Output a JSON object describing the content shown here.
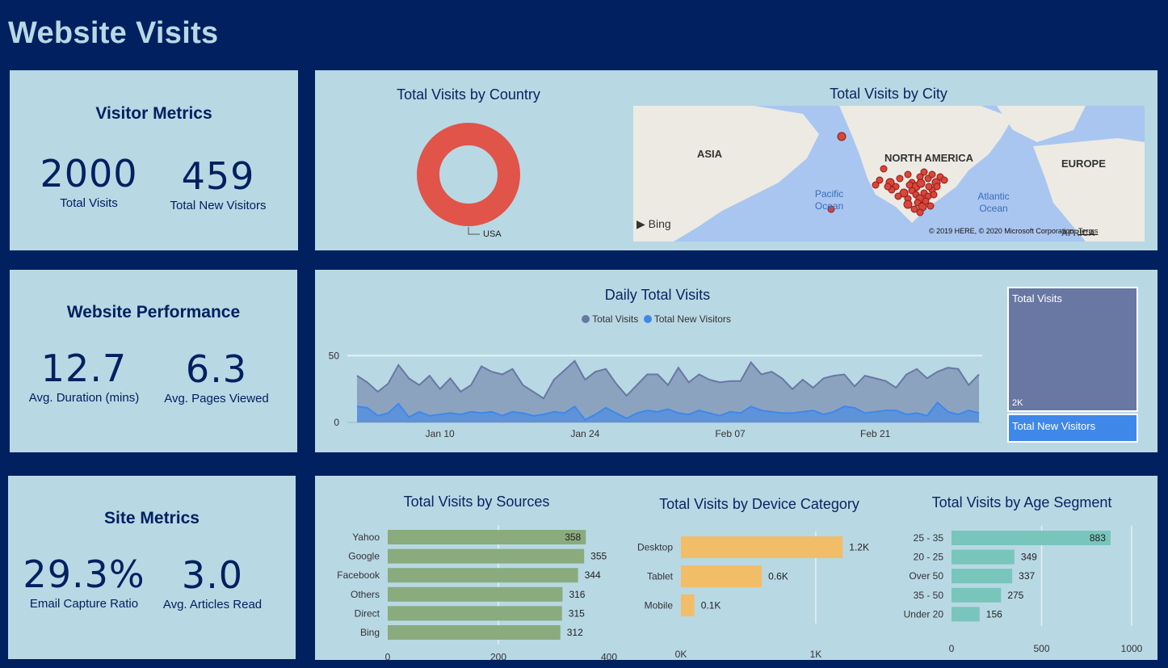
{
  "page": {
    "title": "Website Visits"
  },
  "visitor_metrics": {
    "title": "Visitor Metrics",
    "total_visits": "2000",
    "total_visits_label": "Total Visits",
    "new_visitors": "459",
    "new_visitors_label": "Total New Visitors"
  },
  "website_performance": {
    "title": "Website Performance",
    "avg_duration": "12.7",
    "avg_duration_label": "Avg. Duration (mins)",
    "avg_pages": "6.3",
    "avg_pages_label": "Avg. Pages Viewed"
  },
  "site_metrics": {
    "title": "Site Metrics",
    "email_capture": "29.3%",
    "email_capture_label": "Email Capture Ratio",
    "avg_articles": "3.0",
    "avg_articles_label": "Avg. Articles Read"
  },
  "map": {
    "title": "Total Visits by City",
    "labels": {
      "asia": "ASIA",
      "north_america": "NORTH AMERICA",
      "europe": "EUROPE",
      "pacific": "Pacific Ocean",
      "atlantic": "Atlantic Ocean",
      "africa": "AFRICA"
    },
    "bing": "Bing",
    "copyright": "© 2019 HERE, © 2020 Microsoft Corporation",
    "terms": "Terms"
  },
  "treemap": {
    "total_visits_label": "Total Visits",
    "total_visits_value": "2K",
    "new_visitors_label": "Total New Visitors"
  },
  "colors": {
    "background": "#002060",
    "card": "#b8d8e4",
    "donut": "#e0544a",
    "visits_area": "#6878a2",
    "new_area": "#3f88e9",
    "sources_bar": "#8aab7d",
    "device_bar": "#f2bd69",
    "age_bar": "#78c5bc"
  },
  "chart_data": [
    {
      "type": "pie",
      "variant": "donut",
      "title": "Total Visits by Country",
      "categories": [
        "USA"
      ],
      "values": [
        2000
      ]
    },
    {
      "type": "area",
      "title": "Daily Total Visits",
      "legend": [
        "Total Visits",
        "Total New Visitors"
      ],
      "x_ticks": [
        "Jan 10",
        "Jan 24",
        "Feb 07",
        "Feb 21"
      ],
      "x_tick_index": [
        8,
        22,
        36,
        50
      ],
      "y_ticks": [
        0,
        50
      ],
      "ylim": [
        0,
        52
      ],
      "series": [
        {
          "name": "Total Visits",
          "values": [
            35,
            30,
            23,
            29,
            43,
            33,
            28,
            35,
            25,
            33,
            23,
            28,
            42,
            38,
            36,
            40,
            28,
            23,
            18,
            32,
            39,
            46,
            32,
            38,
            40,
            29,
            20,
            28,
            36,
            36,
            28,
            41,
            30,
            36,
            32,
            30,
            31,
            31,
            45,
            36,
            38,
            33,
            25,
            32,
            26,
            33,
            35,
            36,
            27,
            35,
            33,
            31,
            26,
            36,
            40,
            33,
            38,
            41,
            40,
            28,
            36
          ]
        },
        {
          "name": "Total New Visitors",
          "values": [
            12,
            11,
            5,
            7,
            14,
            4,
            8,
            5,
            6,
            7,
            6,
            8,
            7,
            8,
            5,
            8,
            7,
            5,
            6,
            8,
            7,
            12,
            2,
            6,
            11,
            7,
            3,
            7,
            9,
            8,
            10,
            7,
            6,
            9,
            7,
            5,
            8,
            7,
            12,
            9,
            8,
            7,
            7,
            8,
            9,
            6,
            8,
            12,
            11,
            7,
            8,
            9,
            9,
            6,
            7,
            5,
            15,
            8,
            6,
            9,
            7
          ]
        }
      ]
    },
    {
      "type": "bar",
      "orientation": "horizontal",
      "title": "Total Visits by Sources",
      "categories": [
        "Yahoo",
        "Google",
        "Facebook",
        "Others",
        "Direct",
        "Bing"
      ],
      "values": [
        358,
        355,
        344,
        316,
        315,
        312
      ],
      "data_labels": [
        "358",
        "355",
        "344",
        "316",
        "315",
        "312"
      ],
      "x_ticks": [
        0,
        200,
        400
      ],
      "xlim": [
        0,
        400
      ]
    },
    {
      "type": "bar",
      "orientation": "horizontal",
      "title": "Total Visits by Device Category",
      "categories": [
        "Desktop",
        "Tablet",
        "Mobile"
      ],
      "values": [
        1200,
        600,
        100
      ],
      "data_labels": [
        "1.2K",
        "0.6K",
        "0.1K"
      ],
      "x_ticks": [
        "0K",
        "1K"
      ],
      "xlim": [
        0,
        1300
      ]
    },
    {
      "type": "bar",
      "orientation": "horizontal",
      "title": "Total Visits by Age Segment",
      "categories": [
        "25 - 35",
        "20 - 25",
        "Over 50",
        "35 - 50",
        "Under 20"
      ],
      "values": [
        883,
        349,
        337,
        275,
        156
      ],
      "data_labels": [
        "883",
        "349",
        "337",
        "275",
        "156"
      ],
      "x_ticks": [
        0,
        500,
        1000
      ],
      "xlim": [
        0,
        1000
      ]
    }
  ]
}
